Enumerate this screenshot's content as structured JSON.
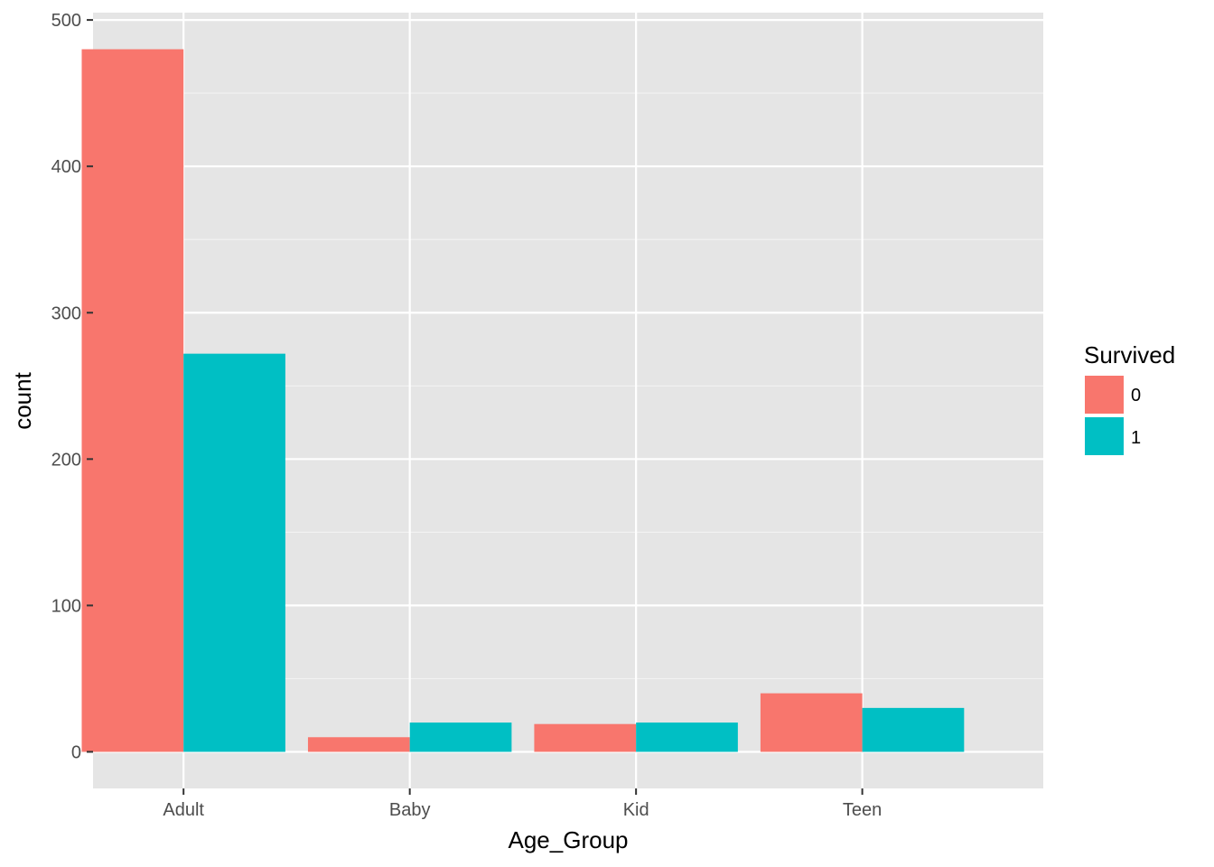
{
  "chart_data": {
    "type": "bar",
    "categories": [
      "Adult",
      "Baby",
      "Kid",
      "Teen"
    ],
    "series": [
      {
        "name": "0",
        "values": [
          480,
          10,
          19,
          40
        ]
      },
      {
        "name": "1",
        "values": [
          272,
          20,
          20,
          30
        ]
      }
    ],
    "xlabel": "Age_Group",
    "ylabel": "count",
    "ylim": [
      -25,
      505
    ],
    "yticks": [
      0,
      100,
      200,
      300,
      400,
      500
    ],
    "legend": {
      "title": "Survived",
      "position": "right"
    },
    "colors": {
      "0": "#F8766D",
      "1": "#00BFC4"
    },
    "panel_background": "#EBEBEB",
    "grid": true
  }
}
